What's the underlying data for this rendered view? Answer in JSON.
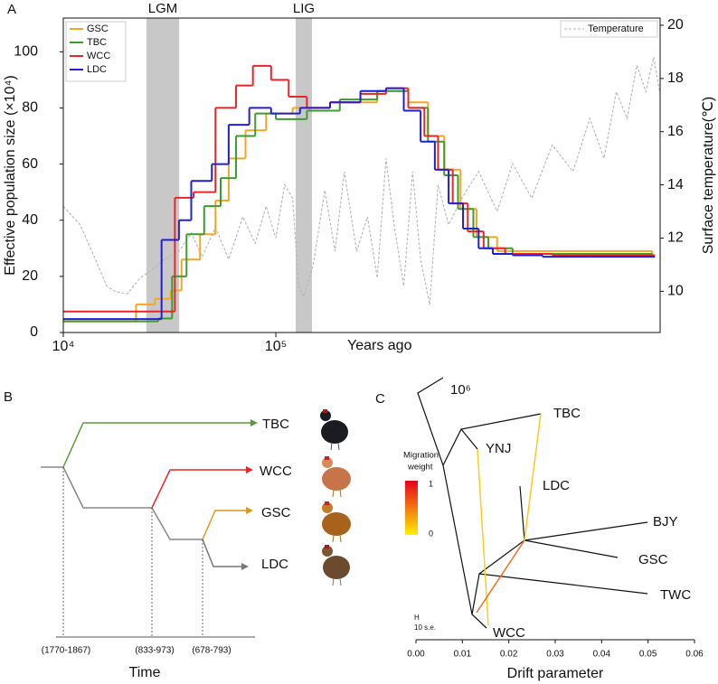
{
  "chart_data": {
    "type": "step-line",
    "panel_label": "A",
    "x_label": "Years ago",
    "y_label": "Effective population size (×10⁴)",
    "y2_label": "Surface temperature(℃)",
    "log_x": true,
    "xlim": [
      10000,
      6430000
    ],
    "xticks": [
      {
        "value": 10000,
        "label": "10⁴"
      },
      {
        "value": 100000,
        "label": "10⁵"
      }
    ],
    "ylim": [
      0,
      112
    ],
    "yticks": [
      0,
      20,
      40,
      60,
      80,
      100
    ],
    "y2lim": [
      8.45,
      20.27
    ],
    "y2ticks": [
      10,
      12,
      14,
      16,
      18,
      20
    ],
    "shaded_regions": [
      {
        "label": "LGM",
        "x": [
          24600,
          35100
        ]
      },
      {
        "label": "LIG",
        "x": [
          124000,
          148000
        ]
      }
    ],
    "legend": "upper left",
    "series": [
      {
        "name": "GSC",
        "color": "#f5a623",
        "x": [
          10000,
          22000,
          27000,
          32000,
          36000,
          44000,
          52000,
          60000,
          72000,
          90000,
          120000,
          180000,
          300000,
          420000,
          520000,
          620000,
          740000,
          880000,
          1100000,
          5900000
        ],
        "values": [
          4,
          10,
          12,
          15,
          26,
          35,
          47,
          62,
          72,
          78,
          80,
          82,
          86,
          82,
          70,
          58,
          44,
          34,
          29,
          27
        ]
      },
      {
        "name": "TBC",
        "color": "#3d9b2f",
        "x": [
          10000,
          28000,
          32500,
          38000,
          46000,
          55000,
          65000,
          80000,
          100000,
          140000,
          200000,
          300000,
          420000,
          520000,
          620000,
          720000,
          850000,
          1000000,
          1300000,
          5900000
        ],
        "values": [
          4,
          5,
          20,
          35,
          45,
          55,
          70,
          78,
          76,
          79,
          83,
          86,
          80,
          68,
          56,
          44,
          34,
          30,
          28,
          27.5
        ]
      },
      {
        "name": "WCC",
        "color": "#e8262a",
        "x": [
          10000,
          33500,
          41000,
          52000,
          65000,
          78000,
          95000,
          115000,
          140000,
          180000,
          250000,
          330000,
          420000,
          500000,
          580000,
          680000,
          800000,
          950000,
          1200000,
          2000000,
          5900000
        ],
        "values": [
          7.5,
          48,
          50,
          80,
          88,
          95,
          90,
          84,
          80,
          82,
          85,
          87,
          80,
          70,
          58,
          46,
          36,
          30,
          28,
          27.5,
          27.5
        ]
      },
      {
        "name": "LDC",
        "color": "#1f1fd6",
        "x": [
          10000,
          29000,
          35000,
          40000,
          50000,
          60000,
          75000,
          95000,
          130000,
          180000,
          250000,
          330000,
          400000,
          480000,
          560000,
          650000,
          760000,
          900000,
          1050000,
          1300000,
          1800000,
          3000000,
          5900000
        ],
        "values": [
          4.8,
          33,
          40,
          54,
          60,
          74,
          80,
          78,
          80,
          82,
          86,
          87,
          79,
          68,
          58,
          46,
          37,
          30,
          28,
          27.5,
          27,
          27,
          27
        ]
      },
      {
        "name": "Temperature",
        "color": "#b5b5b5",
        "axis": "y2",
        "dashed": true,
        "x": [
          10000,
          12000,
          14000,
          16000,
          17500,
          20000,
          23000,
          26000,
          30000,
          35000,
          40000,
          45000,
          52000,
          60000,
          70000,
          80000,
          90000,
          100000,
          110000,
          120000,
          128000,
          135000,
          150000,
          170000,
          190000,
          210000,
          240000,
          270000,
          300000,
          330000,
          360000,
          400000,
          440000,
          480000,
          530000,
          580000,
          650000,
          750000,
          900000,
          1100000,
          1300000,
          1600000,
          2000000,
          2500000,
          3000000,
          3500000,
          4000000,
          4500000,
          5000000,
          5500000,
          6000000,
          6400000
        ],
        "values": [
          13.2,
          12.5,
          11.3,
          10.2,
          10.0,
          9.9,
          10.5,
          10.8,
          11.2,
          11.5,
          12.2,
          11.3,
          12.4,
          11.2,
          12.8,
          11.8,
          13.2,
          12.0,
          14.0,
          13.5,
          10.2,
          9.8,
          11.0,
          13.8,
          11.5,
          14.5,
          11.5,
          12.8,
          10.5,
          15.0,
          12.5,
          10.2,
          14.5,
          11.2,
          9.5,
          14.0,
          12.5,
          13.5,
          14.5,
          13.0,
          14.8,
          13.5,
          15.5,
          14.5,
          16.5,
          15.0,
          17.5,
          16.5,
          18.5,
          17.5,
          18.8,
          17.5
        ]
      }
    ]
  },
  "panel_b": {
    "label": "B",
    "leaves": [
      "TBC",
      "WCC",
      "GSC",
      "LDC"
    ],
    "divergence_times": [
      "(1770-1867)",
      "(833-973)",
      "(678-793)"
    ],
    "axis_label": "Time"
  },
  "panel_c": {
    "label": "C",
    "top_label": "10⁶",
    "nodes": [
      "TBC",
      "YNJ",
      "LDC",
      "BJY",
      "GSC",
      "TWC",
      "WCC"
    ],
    "legend_title": [
      "Migration",
      "weight"
    ],
    "legend_ticks": [
      "1",
      "0"
    ],
    "scale_label": [
      "H",
      "10 s.e."
    ],
    "x_label": "Drift parameter",
    "xticks": [
      {
        "value": 0,
        "label": "0.00"
      },
      {
        "value": 0.01,
        "label": "0.01"
      },
      {
        "value": 0.02,
        "label": "0.02"
      },
      {
        "value": 0.03,
        "label": "0.03"
      },
      {
        "value": 0.04,
        "label": "0.04"
      },
      {
        "value": 0.05,
        "label": "0.05"
      },
      {
        "value": 0.06,
        "label": "0.06"
      }
    ],
    "xlim": [
      0,
      0.06
    ]
  }
}
